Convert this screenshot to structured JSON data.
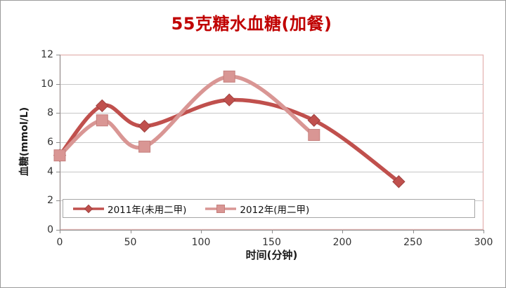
{
  "chart_data": {
    "type": "line",
    "smooth": true,
    "title": "55克糖水血糖(加餐)",
    "xlabel": "时间(分钟)",
    "ylabel": "血糖(mmol/L)",
    "xlim": [
      0,
      300
    ],
    "ylim": [
      0,
      12
    ],
    "xticks": [
      0,
      50,
      100,
      150,
      200,
      250,
      300
    ],
    "yticks": [
      0,
      2,
      4,
      6,
      8,
      10,
      12
    ],
    "grid": true,
    "legend_position": "bottom-left-inside",
    "series": [
      {
        "name": "2011年(未用二甲)",
        "marker": "diamond",
        "color": "#C0504D",
        "marker_stroke": "#9e413f",
        "x": [
          0,
          30,
          60,
          120,
          180,
          240
        ],
        "y": [
          5.1,
          8.5,
          7.1,
          8.9,
          7.5,
          3.3
        ]
      },
      {
        "name": "2012年(用二甲)",
        "marker": "square",
        "color": "#D99694",
        "marker_stroke": "#c47f7c",
        "x": [
          0,
          30,
          60,
          120,
          180
        ],
        "y": [
          5.1,
          7.5,
          5.7,
          10.5,
          6.5
        ]
      }
    ]
  },
  "colors": {
    "title": "#C00000",
    "plot_border": "#E6B9B8",
    "gridline": "#C6C6C6",
    "axis_line": "#8c8c8c",
    "tick_text": "#333333",
    "legend_border": "#A6A6A6",
    "chart_border": "#9B9B9B",
    "background": "#FFFFFF"
  }
}
